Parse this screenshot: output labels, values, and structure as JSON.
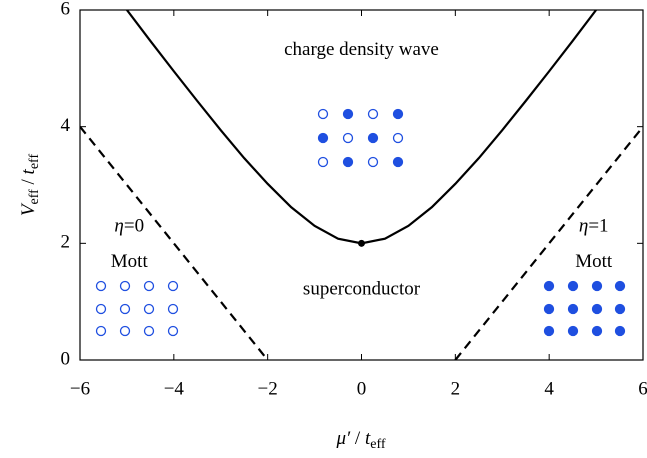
{
  "chart_data": {
    "type": "line",
    "xlabel": [
      "μ′",
      " / ",
      "t",
      "eff"
    ],
    "ylabel": [
      "V",
      "eff",
      " / ",
      "t",
      "eff"
    ],
    "xlim": [
      -6,
      6
    ],
    "ylim": [
      0,
      6
    ],
    "xticks": [
      {
        "value": -6,
        "label": "−6"
      },
      {
        "value": -4,
        "label": "−4"
      },
      {
        "value": -2,
        "label": "−2"
      },
      0,
      2,
      4,
      6
    ],
    "yticks": [
      0,
      2,
      4,
      6
    ],
    "series": [
      {
        "style": "solid",
        "color": "#000000",
        "x": [
          -5,
          -4.5,
          -4,
          -3.5,
          -3,
          -2.5,
          -2,
          -1.5,
          -1,
          -0.5,
          0,
          0.5,
          1,
          1.5,
          2,
          2.5,
          3,
          3.5,
          4,
          4.5,
          5
        ],
        "values": [
          6.0,
          5.47,
          4.95,
          4.44,
          3.94,
          3.46,
          3.02,
          2.62,
          2.3,
          2.08,
          2,
          2.08,
          2.3,
          2.62,
          3.02,
          3.46,
          3.94,
          4.44,
          4.95,
          5.47,
          6.0
        ]
      },
      {
        "style": "dashed",
        "color": "#000000",
        "x": [
          -6,
          -2
        ],
        "values": [
          4,
          0
        ]
      },
      {
        "style": "dashed",
        "color": "#000000",
        "x": [
          2,
          6
        ],
        "values": [
          0,
          4
        ]
      }
    ],
    "point": {
      "x": 0,
      "value": 2,
      "color": "#000000"
    },
    "annotations": [
      {
        "text": "charge density wave",
        "x": 0,
        "y": 5.3
      },
      {
        "text": "superconductor",
        "x": 0,
        "y": 1.2
      },
      {
        "text": "Mott",
        "x": -4.95,
        "y": 1.67
      },
      {
        "text": "Mott",
        "x": 4.95,
        "y": 1.67
      }
    ],
    "eta_labels": [
      {
        "symbol": "η",
        "text": "=0",
        "x": -4.95,
        "y": 2.27
      },
      {
        "symbol": "η",
        "text": "=1",
        "x": 4.95,
        "y": 2.27
      }
    ],
    "dot_color": "#1f4fe0"
  }
}
